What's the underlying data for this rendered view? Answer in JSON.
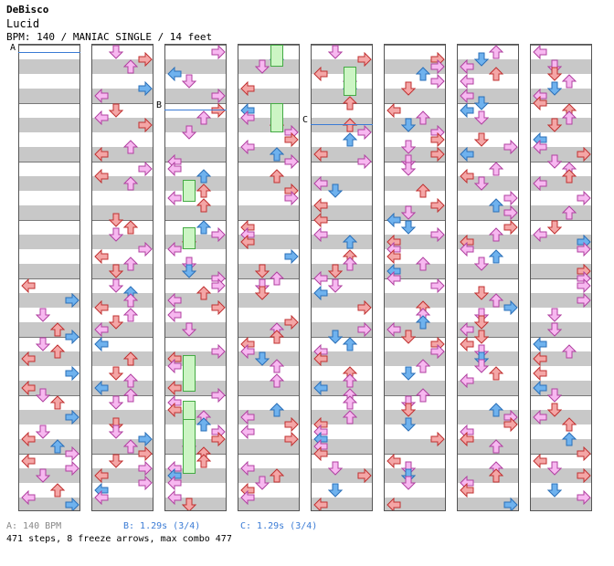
{
  "header": {
    "artist": "DeBisco",
    "title": "Lucid",
    "info": "BPM: 140 / MANIAC SINGLE / 14 feet"
  },
  "markers": {
    "a": "A",
    "b": "B",
    "c": "C"
  },
  "footer": {
    "a_text": "A: 140 BPM",
    "b_text": "B: 1.29s (3/4)",
    "c_text": "C: 1.29s (3/4)",
    "a_color": "#888888",
    "b_color": "#3a7bd5",
    "c_color": "#3a7bd5",
    "stats": "471 steps, 8 freeze arrows, max combo 477"
  },
  "colors": {
    "left": "#f4a6a6",
    "left_stroke": "#c03030",
    "down": "#f7b8f0",
    "down_stroke": "#b040a0",
    "up": "#f4a6a6",
    "up_stroke": "#c03030",
    "right": "#f7b8f0",
    "right_stroke": "#b040a0",
    "quarter": "#6fb2ee",
    "quarter_stroke": "#2a6fb8",
    "freeze_fill": "#ccf5c4",
    "freeze_border": "#44aa44"
  },
  "chart_data": {
    "type": "stepchart",
    "measures": 64,
    "columns": 8,
    "measures_per_column": 8,
    "lanes": [
      "left",
      "down",
      "up",
      "right"
    ],
    "icons": [
      "left-arrow-icon",
      "down-arrow-icon",
      "up-arrow-icon",
      "right-arrow-icon"
    ],
    "notes": [
      [
        5,
        0.0,
        0,
        "r"
      ],
      [
        5,
        0.25,
        3,
        "b"
      ],
      [
        5,
        0.5,
        1,
        "p"
      ],
      [
        5,
        0.75,
        2,
        "r"
      ],
      [
        5,
        0.875,
        3,
        "b"
      ],
      [
        6,
        0.0,
        1,
        "p"
      ],
      [
        6,
        0.125,
        2,
        "r"
      ],
      [
        6,
        0.25,
        0,
        "r"
      ],
      [
        6,
        0.5,
        3,
        "b"
      ],
      [
        6,
        0.75,
        0,
        "r"
      ],
      [
        6,
        0.875,
        1,
        "p"
      ],
      [
        7,
        0.0,
        2,
        "r"
      ],
      [
        7,
        0.25,
        3,
        "b"
      ],
      [
        7,
        0.5,
        1,
        "p"
      ],
      [
        7,
        0.625,
        0,
        "r"
      ],
      [
        7,
        0.75,
        2,
        "b"
      ],
      [
        7,
        0.875,
        3,
        "p"
      ],
      [
        8,
        0.0,
        0,
        "r"
      ],
      [
        8,
        0.125,
        3,
        "p"
      ],
      [
        8,
        0.25,
        1,
        "p"
      ],
      [
        8,
        0.5,
        2,
        "r"
      ],
      [
        8,
        0.625,
        0,
        "p"
      ],
      [
        8,
        0.75,
        3,
        "b"
      ],
      [
        8,
        0.875,
        1,
        "p"
      ],
      [
        1,
        0.0,
        1,
        "p"
      ],
      [
        1,
        0.125,
        3,
        "r"
      ],
      [
        1,
        0.25,
        0,
        "p"
      ],
      [
        1,
        0.375,
        3,
        "r"
      ],
      [
        1,
        0.5,
        0,
        "p"
      ],
      [
        1,
        0.75,
        2,
        "b"
      ],
      [
        1,
        0.875,
        3,
        "r"
      ],
      [
        2,
        0.0,
        0,
        "r"
      ],
      [
        2,
        0.25,
        2,
        "b"
      ],
      [
        2,
        0.375,
        0,
        "p"
      ],
      [
        2,
        0.5,
        3,
        "p"
      ],
      [
        2,
        0.75,
        1,
        "p"
      ],
      [
        3,
        0.0,
        3,
        "r"
      ],
      [
        3,
        0.125,
        2,
        "r"
      ],
      [
        3,
        0.25,
        1,
        "p"
      ],
      [
        3,
        0.5,
        0,
        "p"
      ],
      [
        3,
        0.625,
        2,
        "r"
      ],
      [
        3,
        0.875,
        3,
        "r"
      ],
      [
        4,
        0.0,
        0,
        "p"
      ],
      [
        4,
        0.125,
        1,
        "r"
      ],
      [
        4,
        0.25,
        2,
        "r"
      ],
      [
        4,
        0.375,
        3,
        "p"
      ],
      [
        4,
        0.625,
        0,
        "r"
      ],
      [
        4,
        0.875,
        2,
        "b"
      ]
    ]
  }
}
